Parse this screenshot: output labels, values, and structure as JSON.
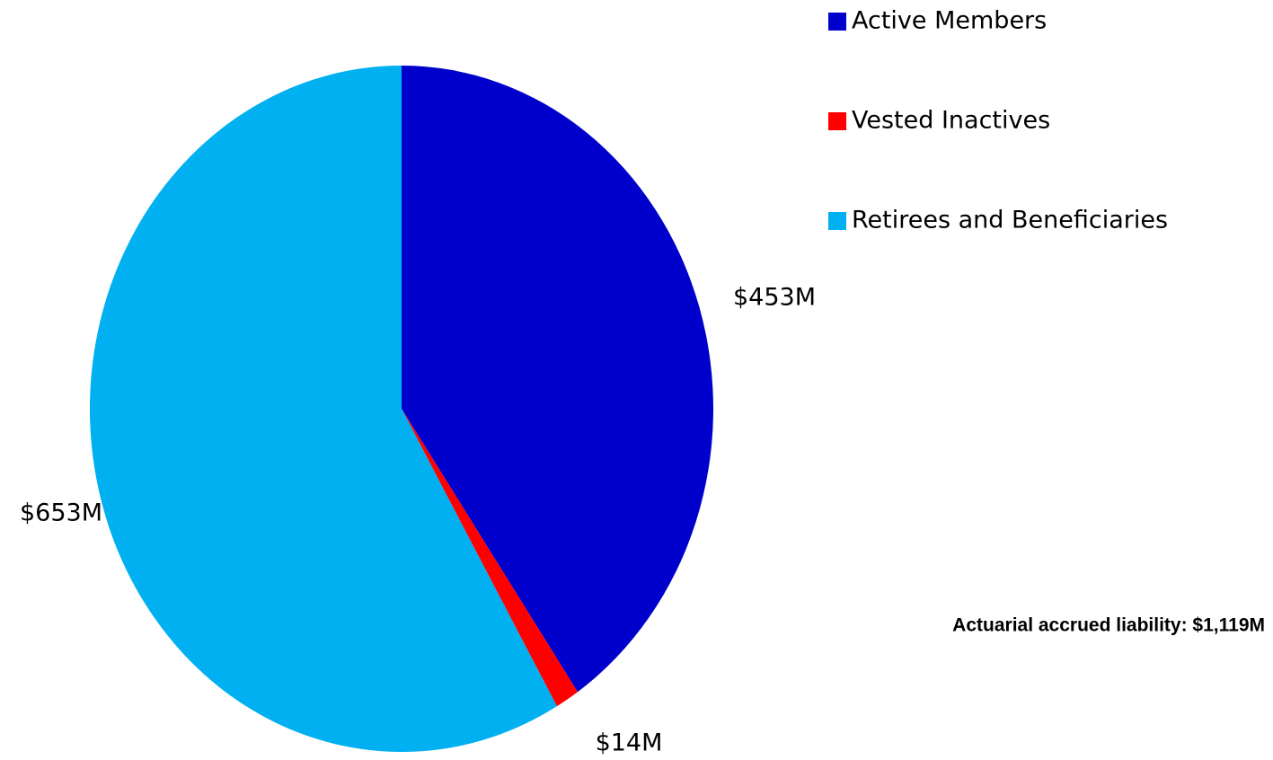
{
  "chart_data": {
    "type": "pie",
    "categories": [
      "Active Members",
      "Vested Inactives",
      "Retirees and Beneficiaries"
    ],
    "values": [
      453,
      14,
      653
    ],
    "value_labels": [
      "$453M",
      "$14M",
      "$653M"
    ],
    "colors": [
      "#0000cc",
      "#ff0000",
      "#00b0f0"
    ],
    "annotation": "Actuarial accrued liability: $1,119M",
    "legend": "top-right"
  }
}
